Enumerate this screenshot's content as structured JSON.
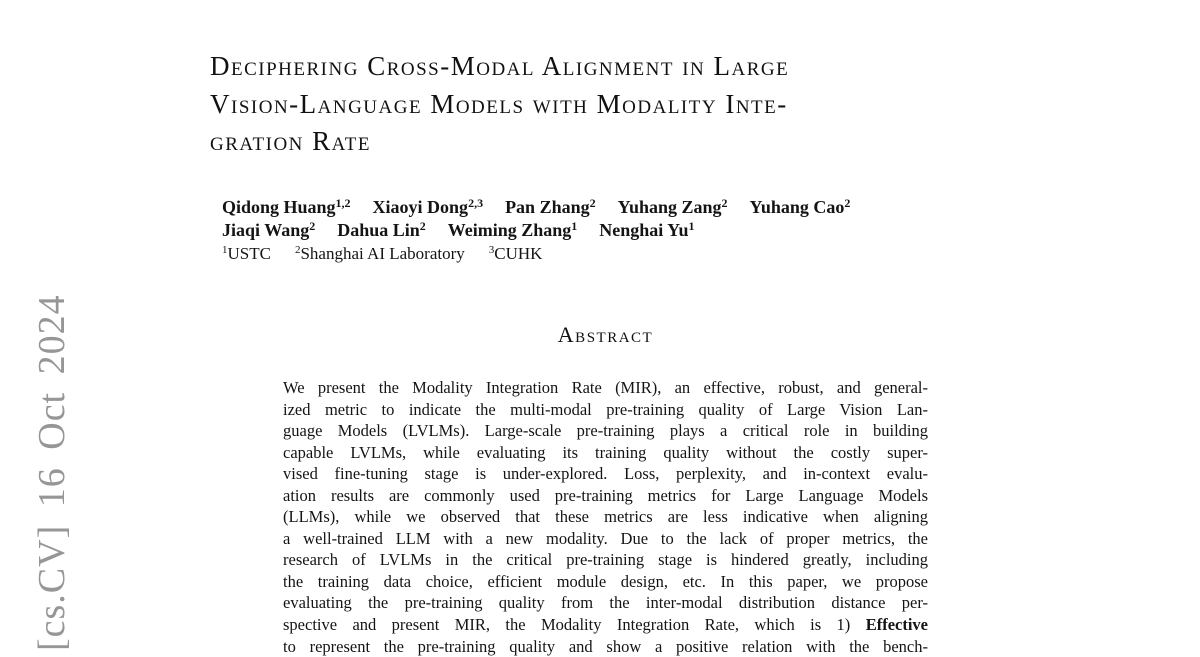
{
  "colors": {
    "background": "#ffffff",
    "text": "#141414",
    "watermark_gray": "#969696"
  },
  "watermark": {
    "text": "[cs.CV] 16 Oct 2024"
  },
  "title": {
    "lines": [
      "Deciphering Cross-Modal Alignment in Large",
      "Vision-Language Models with Modality Inte-",
      "gration Rate"
    ]
  },
  "authors": {
    "rows": [
      [
        {
          "name": "Qidong Huang",
          "sup": "1,2"
        },
        {
          "name": "Xiaoyi Dong",
          "sup": "2,3"
        },
        {
          "name": "Pan Zhang",
          "sup": "2"
        },
        {
          "name": "Yuhang Zang",
          "sup": "2"
        },
        {
          "name": "Yuhang Cao",
          "sup": "2"
        }
      ],
      [
        {
          "name": "Jiaqi Wang",
          "sup": "2"
        },
        {
          "name": "Dahua Lin",
          "sup": "2"
        },
        {
          "name": "Weiming Zhang",
          "sup": "1"
        },
        {
          "name": "Nenghai Yu",
          "sup": "1"
        }
      ]
    ],
    "affiliations": [
      {
        "sup": "1",
        "label": "USTC"
      },
      {
        "sup": "2",
        "label": "Shanghai AI Laboratory"
      },
      {
        "sup": "3",
        "label": "CUHK"
      }
    ]
  },
  "abstract": {
    "heading": "Abstract",
    "lines": [
      [
        {
          "t": "We present the Modality Integration Rate (MIR), an effective, robust, and general-"
        }
      ],
      [
        {
          "t": "ized metric to indicate the multi-modal pre-training quality of Large Vision Lan-"
        }
      ],
      [
        {
          "t": "guage Models (LVLMs). Large-scale pre-training plays a critical role in building"
        }
      ],
      [
        {
          "t": "capable LVLMs, while evaluating its training quality without the costly super-"
        }
      ],
      [
        {
          "t": "vised fine-tuning stage is under-explored. Loss, perplexity, and in-context evalu-"
        }
      ],
      [
        {
          "t": "ation results are commonly used pre-training metrics for Large Language Models"
        }
      ],
      [
        {
          "t": "(LLMs), while we observed that these metrics are less indicative when aligning"
        }
      ],
      [
        {
          "t": "a well-trained LLM with a new modality. Due to the lack of proper metrics, the"
        }
      ],
      [
        {
          "t": "research of LVLMs in the critical pre-training stage is hindered greatly, including"
        }
      ],
      [
        {
          "t": "the training data choice, efficient module design, etc. In this paper, we propose"
        }
      ],
      [
        {
          "t": "evaluating the pre-training quality from the inter-modal distribution distance per-"
        }
      ],
      [
        {
          "t": "spective and present MIR, the Modality Integration Rate, which is 1) "
        },
        {
          "t": "Effective",
          "b": true
        }
      ],
      [
        {
          "t": "to represent the pre-training quality and show a positive relation with the bench-"
        }
      ]
    ]
  }
}
